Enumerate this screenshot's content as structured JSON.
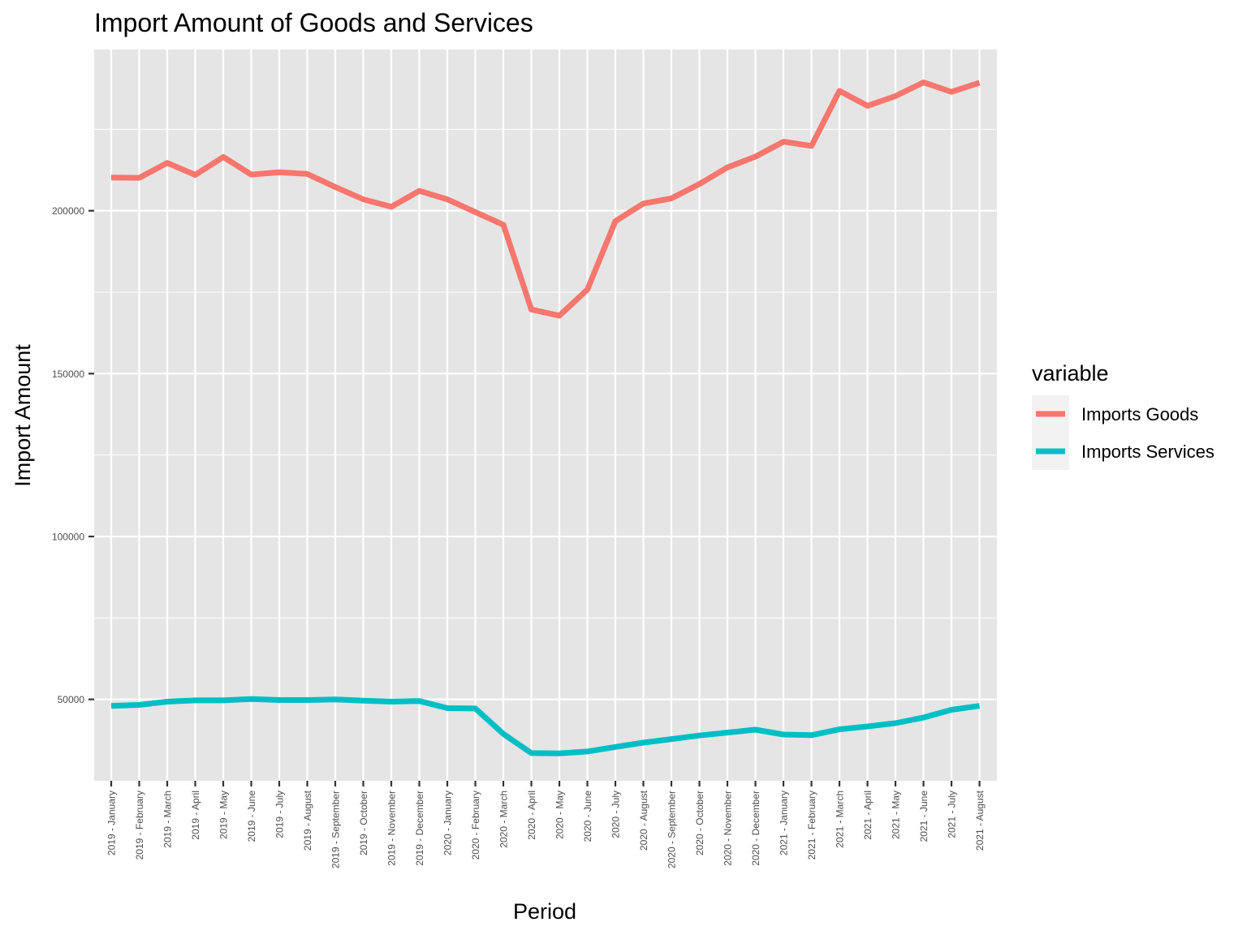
{
  "chart_data": {
    "type": "line",
    "title": "Import Amount of Goods and Services",
    "xlabel": "Period",
    "ylabel": "Import Amount",
    "categories": [
      "2019 - January",
      "2019 - February",
      "2019 - March",
      "2019 - April",
      "2019 - May",
      "2019 - June",
      "2019 - July",
      "2019 - August",
      "2019 - September",
      "2019 - October",
      "2019 - November",
      "2019 - December",
      "2020 - January",
      "2020 - February",
      "2020 - March",
      "2020 - April",
      "2020 - May",
      "2020 - June",
      "2020 - July",
      "2020 - August",
      "2020 - September",
      "2020 - October",
      "2020 - November",
      "2020 - December",
      "2021 - January",
      "2021 - February",
      "2021 - March",
      "2021 - April",
      "2021 - May",
      "2021 - June",
      "2021 - July",
      "2021 - August"
    ],
    "series": [
      {
        "name": "Imports Goods",
        "color": "#F8766D",
        "values": [
          210200,
          210100,
          214700,
          211000,
          216500,
          211100,
          211800,
          211300,
          207300,
          203500,
          201200,
          206100,
          203500,
          199600,
          195700,
          169700,
          167800,
          175800,
          196800,
          202200,
          203800,
          208200,
          213300,
          216600,
          221200,
          219900,
          236800,
          232200,
          235200,
          239400,
          236500,
          239300
        ]
      },
      {
        "name": "Imports Services",
        "color": "#00BFC4",
        "values": [
          48000,
          48300,
          49300,
          49700,
          49700,
          50100,
          49800,
          49800,
          50000,
          49600,
          49300,
          49500,
          47300,
          47200,
          39400,
          33500,
          33400,
          34000,
          35400,
          36700,
          37800,
          38900,
          39800,
          40700,
          39200,
          39000,
          40800,
          41700,
          42700,
          44400,
          46800,
          48000
        ]
      }
    ],
    "yticks": [
      50000,
      100000,
      150000,
      200000
    ],
    "ytick_labels": [
      "50000",
      "100000",
      "150000",
      "200000"
    ],
    "ylim": [
      25000,
      249500
    ],
    "grid": true,
    "legend": {
      "title": "variable",
      "position": "right"
    },
    "panel_background": "#E5E5E5",
    "grid_color": "#FFFFFF"
  }
}
